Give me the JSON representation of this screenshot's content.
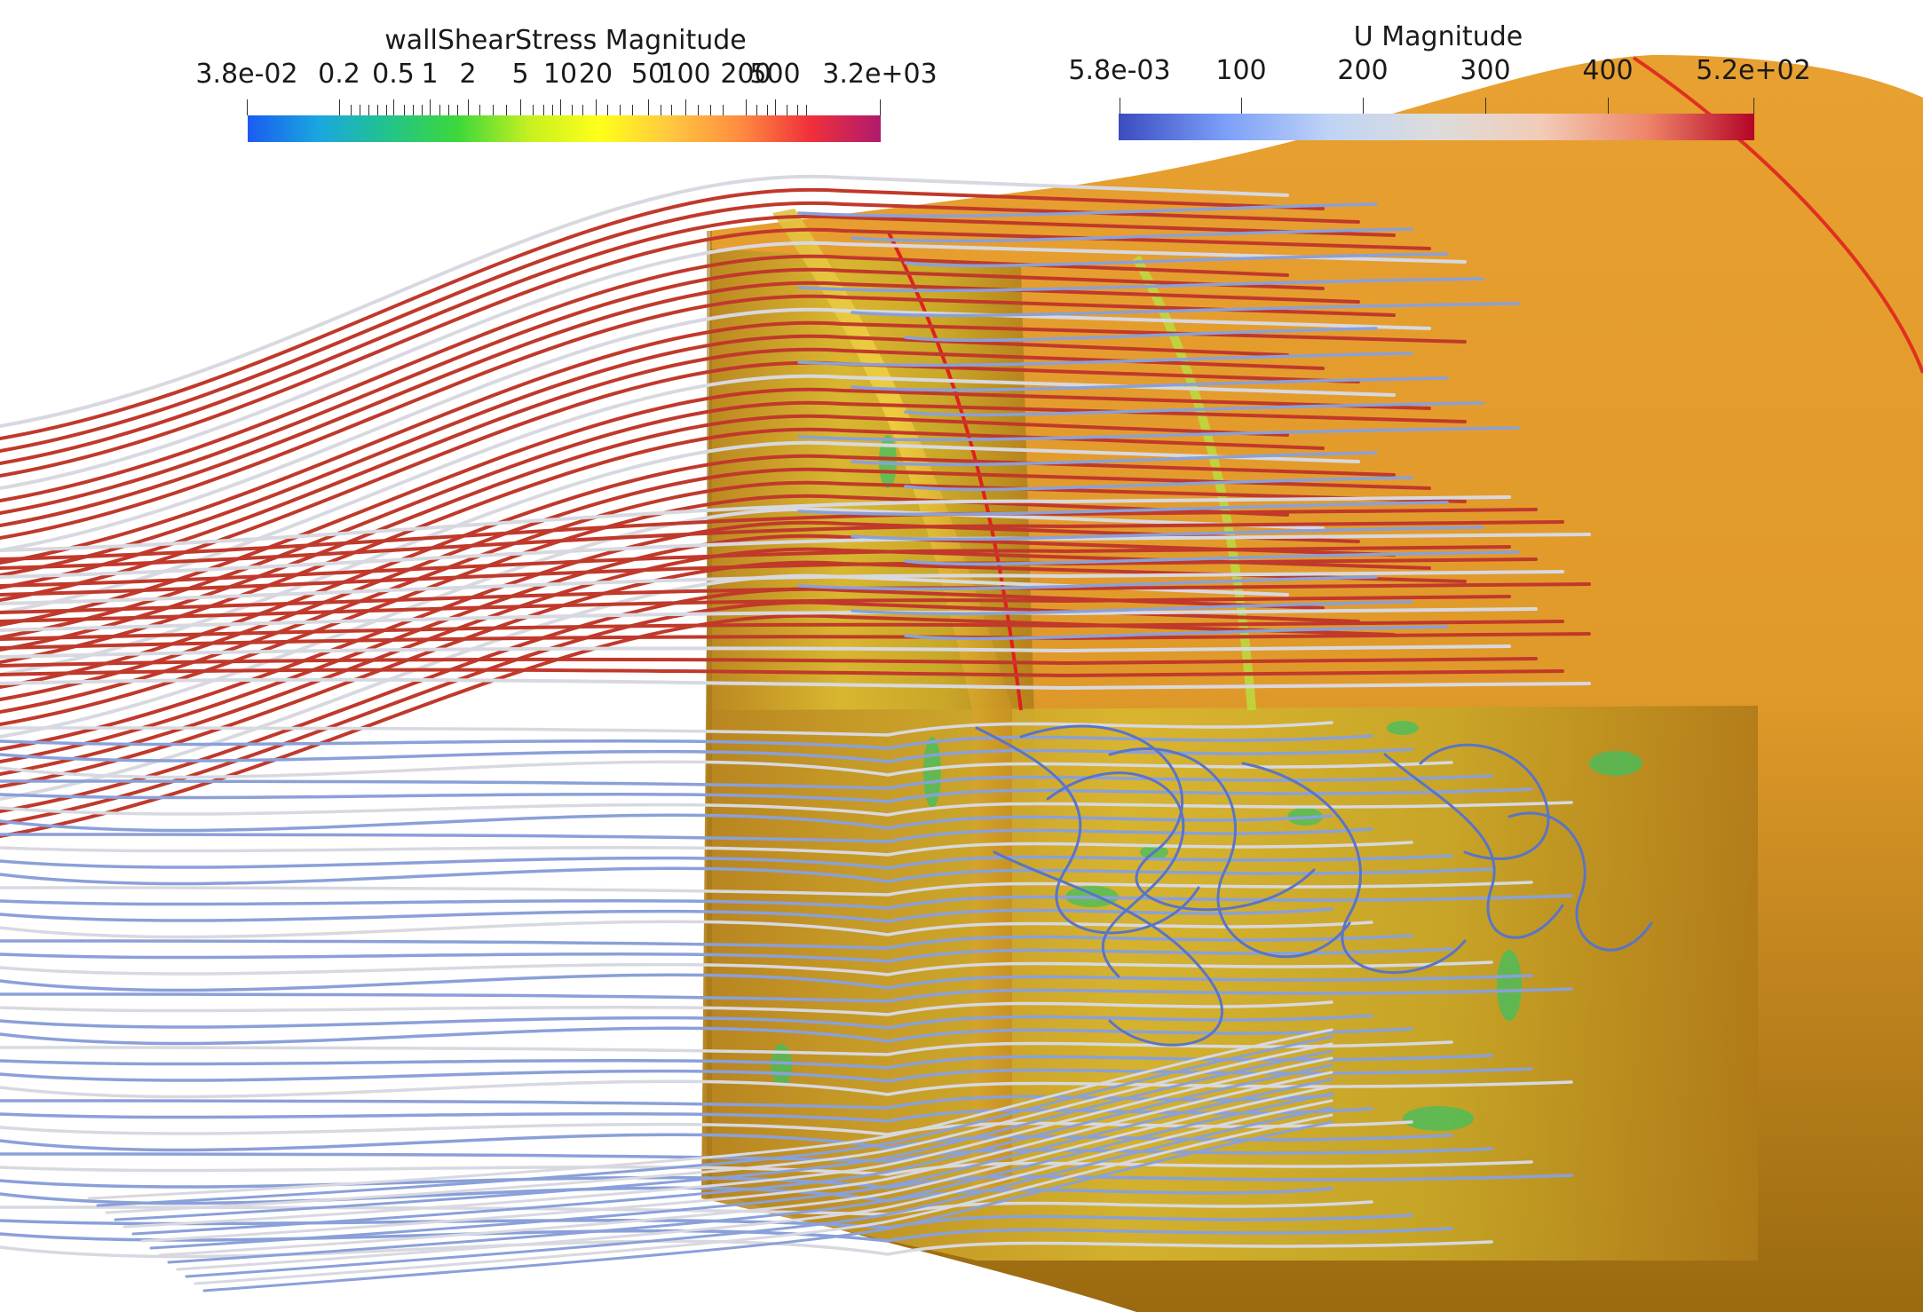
{
  "colorbars": {
    "wss": {
      "title": "wallShearStress Magnitude",
      "ticks": [
        "3.8e-02",
        "0.2",
        "0.5",
        "1",
        "2",
        "5",
        "10",
        "20",
        "50",
        "100",
        "200",
        "500",
        "3.2e+03"
      ],
      "colors": [
        "#1a5cf0",
        "#1aa6e0",
        "#22c48a",
        "#3ed83a",
        "#c6f020",
        "#ffff1a",
        "#ffc840",
        "#ff8c40",
        "#f0303a",
        "#b01a6e"
      ]
    },
    "u": {
      "title": "U Magnitude",
      "ticks": [
        "5.8e-03",
        "100",
        "200",
        "300",
        "400",
        "5.2e+02"
      ],
      "colors": [
        "#3b4cc0",
        "#7b9ff9",
        "#c0d4f5",
        "#dddcdc",
        "#f2cbb7",
        "#ee8468",
        "#b40426"
      ]
    }
  },
  "scene": {
    "surface_colors": [
      "#d98a1c",
      "#e8a030",
      "#b87a18",
      "#f0b840"
    ],
    "streamline_fast": "#c0392b",
    "streamline_slow": "#8aa0d8",
    "streamline_mid": "#d8d8e0"
  }
}
